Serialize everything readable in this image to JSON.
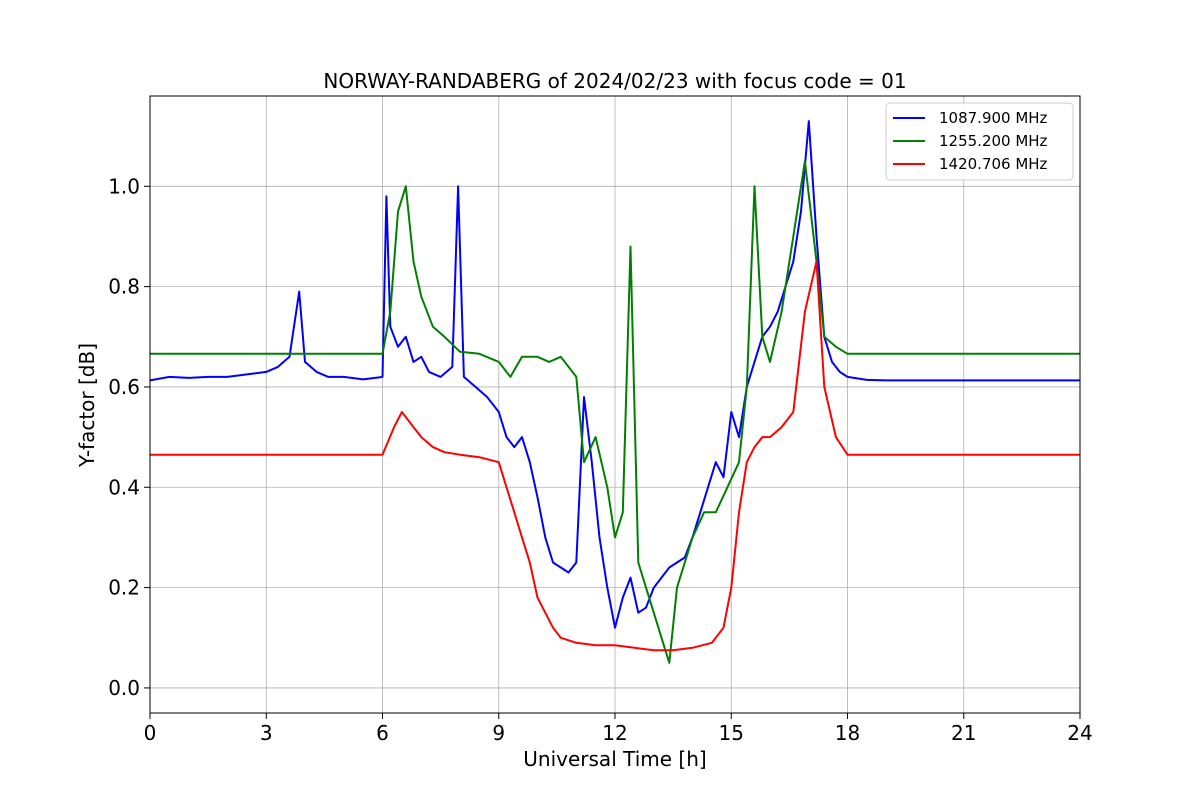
{
  "chart_data": {
    "type": "line",
    "title": "NORWAY-RANDABERG of 2024/02/23 with focus code = 01",
    "xlabel": "Universal Time [h]",
    "ylabel": "Y-factor [dB]",
    "xlim": [
      0,
      24
    ],
    "ylim": [
      -0.05,
      1.18
    ],
    "xticks": [
      0,
      3,
      6,
      9,
      12,
      15,
      18,
      21,
      24
    ],
    "yticks": [
      0.0,
      0.2,
      0.4,
      0.6,
      0.8,
      1.0
    ],
    "xtick_labels": [
      "0",
      "3",
      "6",
      "9",
      "12",
      "15",
      "18",
      "21",
      "24"
    ],
    "ytick_labels": [
      "0.0",
      "0.2",
      "0.4",
      "0.6",
      "0.8",
      "1.0"
    ],
    "grid": true,
    "legend_position": "top-right",
    "series": [
      {
        "name": "1087.900 MHz",
        "color": "#0000ff",
        "x": [
          0,
          0.5,
          1,
          1.5,
          2,
          2.5,
          3,
          3.3,
          3.6,
          3.85,
          4,
          4.3,
          4.6,
          5,
          5.5,
          6,
          6.1,
          6.2,
          6.4,
          6.6,
          6.8,
          7,
          7.2,
          7.5,
          7.8,
          7.95,
          8.1,
          8.4,
          8.7,
          9,
          9.2,
          9.4,
          9.6,
          9.8,
          10,
          10.2,
          10.4,
          10.6,
          10.8,
          11,
          11.2,
          11.4,
          11.6,
          11.8,
          12,
          12.2,
          12.4,
          12.6,
          12.8,
          13,
          13.2,
          13.4,
          13.6,
          13.8,
          14,
          14.2,
          14.4,
          14.6,
          14.8,
          15,
          15.2,
          15.4,
          15.6,
          15.8,
          16,
          16.2,
          16.4,
          16.6,
          16.8,
          17,
          17.2,
          17.4,
          17.6,
          17.8,
          18,
          18.5,
          19,
          20,
          21,
          22,
          23,
          24
        ],
        "y": [
          0.613,
          0.62,
          0.618,
          0.62,
          0.62,
          0.625,
          0.63,
          0.64,
          0.66,
          0.79,
          0.65,
          0.63,
          0.62,
          0.62,
          0.615,
          0.62,
          0.98,
          0.72,
          0.68,
          0.7,
          0.65,
          0.66,
          0.63,
          0.62,
          0.64,
          1.0,
          0.62,
          0.6,
          0.58,
          0.55,
          0.5,
          0.48,
          0.5,
          0.45,
          0.38,
          0.3,
          0.25,
          0.24,
          0.23,
          0.25,
          0.58,
          0.45,
          0.3,
          0.2,
          0.12,
          0.18,
          0.22,
          0.15,
          0.16,
          0.2,
          0.22,
          0.24,
          0.25,
          0.26,
          0.3,
          0.35,
          0.4,
          0.45,
          0.42,
          0.55,
          0.5,
          0.6,
          0.65,
          0.7,
          0.72,
          0.75,
          0.8,
          0.85,
          0.95,
          1.13,
          0.9,
          0.7,
          0.65,
          0.63,
          0.62,
          0.614,
          0.613,
          0.613,
          0.613,
          0.613,
          0.613,
          0.613
        ]
      },
      {
        "name": "1255.200 MHz",
        "color": "#008000",
        "x": [
          0,
          0.5,
          1,
          2,
          3,
          4,
          5,
          6,
          6.2,
          6.4,
          6.6,
          6.8,
          7,
          7.3,
          7.6,
          8,
          8.5,
          9,
          9.3,
          9.6,
          10,
          10.3,
          10.6,
          11,
          11.2,
          11.5,
          11.8,
          12,
          12.2,
          12.4,
          12.6,
          12.8,
          13,
          13.2,
          13.4,
          13.6,
          13.8,
          14,
          14.3,
          14.6,
          14.9,
          15.2,
          15.4,
          15.6,
          15.8,
          16,
          16.3,
          16.6,
          16.9,
          17.2,
          17.4,
          17.7,
          18,
          19,
          20,
          21,
          22,
          23,
          24
        ],
        "y": [
          0.666,
          0.666,
          0.666,
          0.666,
          0.666,
          0.666,
          0.666,
          0.666,
          0.75,
          0.95,
          1.0,
          0.85,
          0.78,
          0.72,
          0.7,
          0.67,
          0.666,
          0.65,
          0.62,
          0.66,
          0.66,
          0.65,
          0.66,
          0.62,
          0.45,
          0.5,
          0.4,
          0.3,
          0.35,
          0.88,
          0.25,
          0.2,
          0.15,
          0.1,
          0.05,
          0.2,
          0.25,
          0.3,
          0.35,
          0.35,
          0.4,
          0.45,
          0.6,
          1.0,
          0.7,
          0.65,
          0.75,
          0.9,
          1.05,
          0.85,
          0.7,
          0.68,
          0.666,
          0.666,
          0.666,
          0.666,
          0.666,
          0.666,
          0.666
        ]
      },
      {
        "name": "1420.706 MHz",
        "color": "#ff0000",
        "x": [
          0,
          1,
          2,
          3,
          4,
          5,
          6,
          6.3,
          6.5,
          6.8,
          7,
          7.3,
          7.6,
          8,
          8.5,
          9,
          9.2,
          9.4,
          9.6,
          9.8,
          10,
          10.2,
          10.4,
          10.6,
          11,
          11.5,
          12,
          12.5,
          13,
          13.5,
          14,
          14.5,
          14.8,
          15,
          15.2,
          15.4,
          15.6,
          15.8,
          16,
          16.3,
          16.6,
          16.9,
          17.2,
          17.4,
          17.7,
          18,
          19,
          20,
          21,
          22,
          23,
          24
        ],
        "y": [
          0.465,
          0.465,
          0.465,
          0.465,
          0.465,
          0.465,
          0.465,
          0.52,
          0.55,
          0.52,
          0.5,
          0.48,
          0.47,
          0.465,
          0.46,
          0.45,
          0.4,
          0.35,
          0.3,
          0.25,
          0.18,
          0.15,
          0.12,
          0.1,
          0.09,
          0.085,
          0.085,
          0.08,
          0.075,
          0.075,
          0.08,
          0.09,
          0.12,
          0.2,
          0.35,
          0.45,
          0.48,
          0.5,
          0.5,
          0.52,
          0.55,
          0.75,
          0.85,
          0.6,
          0.5,
          0.465,
          0.465,
          0.465,
          0.465,
          0.465,
          0.465,
          0.465
        ]
      }
    ]
  }
}
